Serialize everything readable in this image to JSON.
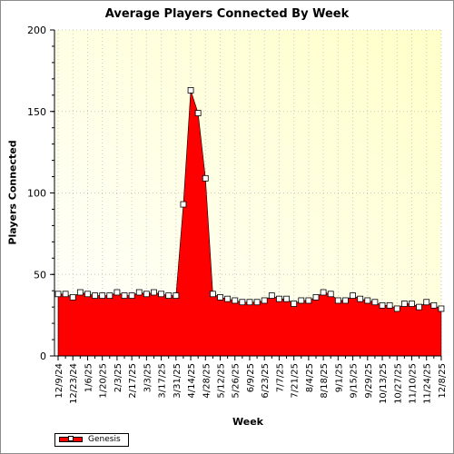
{
  "chart_data": {
    "type": "area",
    "title": "Average Players Connected By Week",
    "xlabel": "Week",
    "ylabel": "Players Connected",
    "ylim": [
      0,
      200
    ],
    "yticks": [
      0,
      50,
      100,
      150,
      200
    ],
    "grid": true,
    "legend_position": "bottom-left",
    "colors": {
      "fill": "#ff0000",
      "plot_bg_top": "#fffff0",
      "plot_bg_right": "#ffffc8"
    },
    "x_tick_labels": [
      "12/9/24",
      "12/23/24",
      "1/6/25",
      "1/20/25",
      "2/3/25",
      "2/17/25",
      "3/3/25",
      "3/17/25",
      "3/31/25",
      "4/14/25",
      "4/28/25",
      "5/12/25",
      "5/26/25",
      "6/9/25",
      "6/23/25",
      "7/7/25",
      "7/21/25",
      "8/4/25",
      "8/18/25",
      "9/1/25",
      "9/15/25",
      "9/29/25",
      "10/13/25",
      "10/27/25",
      "11/10/25",
      "11/24/25",
      "12/8/25"
    ],
    "x": [
      "12/9/24",
      "12/16/24",
      "12/23/24",
      "12/30/24",
      "1/6/25",
      "1/13/25",
      "1/20/25",
      "1/27/25",
      "2/3/25",
      "2/10/25",
      "2/17/25",
      "2/24/25",
      "3/3/25",
      "3/10/25",
      "3/17/25",
      "3/24/25",
      "3/31/25",
      "4/7/25",
      "4/14/25",
      "4/21/25",
      "4/28/25",
      "5/5/25",
      "5/12/25",
      "5/19/25",
      "5/26/25",
      "6/2/25",
      "6/9/25",
      "6/16/25",
      "6/23/25",
      "6/30/25",
      "7/7/25",
      "7/14/25",
      "7/21/25",
      "7/28/25",
      "8/4/25",
      "8/11/25",
      "8/18/25",
      "8/25/25",
      "9/1/25",
      "9/8/25",
      "9/15/25",
      "9/22/25",
      "9/29/25",
      "10/6/25",
      "10/13/25",
      "10/20/25",
      "10/27/25",
      "11/3/25",
      "11/10/25",
      "11/17/25",
      "11/24/25",
      "12/1/25",
      "12/8/25"
    ],
    "series": [
      {
        "name": "Genesis",
        "values": [
          38,
          38,
          36,
          39,
          38,
          37,
          37,
          37,
          39,
          37,
          37,
          39,
          38,
          39,
          38,
          37,
          37,
          93,
          163,
          149,
          109,
          38,
          36,
          35,
          34,
          33,
          33,
          33,
          34,
          37,
          35,
          35,
          32,
          34,
          34,
          36,
          39,
          38,
          34,
          34,
          37,
          35,
          34,
          33,
          31,
          31,
          29,
          32,
          32,
          30,
          33,
          31,
          29
        ]
      }
    ]
  }
}
